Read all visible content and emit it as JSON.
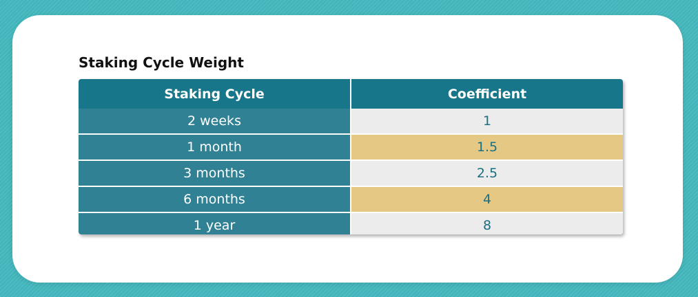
{
  "title": "Staking Cycle Weight",
  "table": {
    "headers": [
      "Staking Cycle",
      "Coefficient"
    ],
    "rows": [
      {
        "cycle": "2 weeks",
        "coefficient": "1"
      },
      {
        "cycle": "1 month",
        "coefficient": "1.5"
      },
      {
        "cycle": "3 months",
        "coefficient": "2.5"
      },
      {
        "cycle": "6 months",
        "coefficient": "4"
      },
      {
        "cycle": "1 year",
        "coefficient": "8"
      }
    ]
  },
  "colors": {
    "background": "#43b9bf",
    "header": "#177689",
    "left_column": "#2f8193",
    "row_light": "#ececec",
    "row_highlight": "#e6c885",
    "value_text": "#1c6f80"
  }
}
